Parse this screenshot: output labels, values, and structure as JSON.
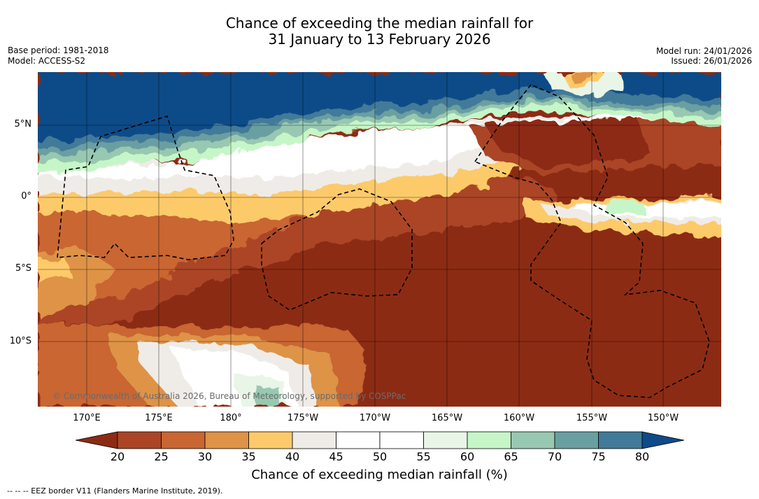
{
  "title_line1": "Chance of exceeding the median rainfall for",
  "title_line2": "31 January to 13 February 2026",
  "meta_left": {
    "base_period": "Base period: 1981-2018",
    "model": "Model: ACCESS-S2"
  },
  "meta_right": {
    "model_run": "Model run: 24/01/2026",
    "issued": "Issued: 26/01/2026"
  },
  "lat_ticks": [
    "5°N",
    "0°",
    "5°S",
    "10°S"
  ],
  "lon_ticks": [
    "170°E",
    "175°E",
    "180°",
    "175°W",
    "170°W",
    "165°W",
    "160°W",
    "155°W",
    "150°W"
  ],
  "colorbar": {
    "labels": [
      "20",
      "25",
      "30",
      "35",
      "40",
      "45",
      "50",
      "55",
      "60",
      "65",
      "70",
      "75",
      "80"
    ],
    "colors": {
      "under": "#8c2b14",
      "bins": [
        "#ab4526",
        "#c96632",
        "#de9346",
        "#fdca6b",
        "#efece8",
        "#ffffff",
        "#ffffff",
        "#e9f5e7",
        "#c6f6c8",
        "#98c8b1",
        "#6a9fa2",
        "#427a99"
      ],
      "over": "#0f4b88"
    },
    "title": "Chance of exceeding median rainfall (%)"
  },
  "copyright": "© Commonwealth of Australia 2026, Bureau of Meteorology, supported by COSPPac",
  "footer": "--  --  -- EEZ border V11 (Flanders Marine Institute, 2019)."
}
